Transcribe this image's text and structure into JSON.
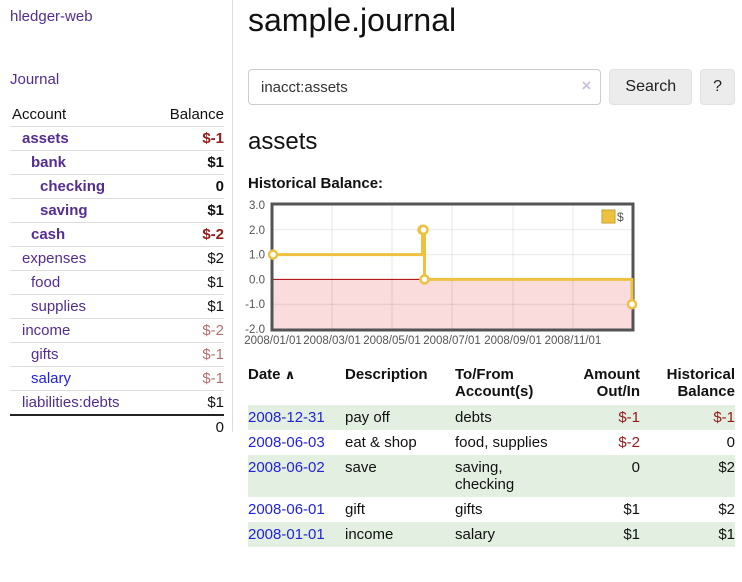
{
  "colors": {
    "link_visited": "#552d90",
    "link_unvisited": "#2222dd",
    "negative_strong": "#941a1a",
    "negative_muted": "#b4706f",
    "row_stripe_green": "#e3efe1",
    "chart_series_gold": "#edc240",
    "chart_series_gold_border": "#c9a02c",
    "chart_negative_fill": "#fadcdc",
    "chart_zero_line": "#aa0000",
    "chart_axis_text": "#545454",
    "chart_border": "#545454"
  },
  "icons": {
    "sort_ascending": "∧",
    "clear": "×"
  },
  "sidebar": {
    "brand": "hledger-web",
    "journal_link": "Journal",
    "accounts_table": {
      "headers": {
        "account": "Account",
        "balance": "Balance"
      },
      "rows": [
        {
          "name": "assets",
          "indent": 0,
          "bold": true,
          "balance": "$-1"
        },
        {
          "name": "bank",
          "indent": 1,
          "bold": true,
          "balance": "$1"
        },
        {
          "name": "checking",
          "indent": 2,
          "bold": true,
          "balance": "0"
        },
        {
          "name": "saving",
          "indent": 2,
          "bold": true,
          "balance": "$1"
        },
        {
          "name": "cash",
          "indent": 1,
          "bold": true,
          "balance": "$-2"
        },
        {
          "name": "expenses",
          "indent": 0,
          "bold": false,
          "balance": "$2"
        },
        {
          "name": "food",
          "indent": 1,
          "bold": false,
          "balance": "$1"
        },
        {
          "name": "supplies",
          "indent": 1,
          "bold": false,
          "balance": "$1"
        },
        {
          "name": "income",
          "indent": 0,
          "bold": false,
          "balance": "$-2"
        },
        {
          "name": "gifts",
          "indent": 1,
          "bold": false,
          "balance": "$-1"
        },
        {
          "name": "salary",
          "indent": 1,
          "bold": false,
          "balance": "$-1",
          "unvisited": true
        },
        {
          "name": "liabilities:debts",
          "indent": 0,
          "bold": false,
          "balance": "$1"
        }
      ],
      "total": "0"
    }
  },
  "header": {
    "title": "sample.journal"
  },
  "search": {
    "value": "inacct:assets",
    "button_label": "Search",
    "help_label": "?"
  },
  "account_page": {
    "heading": "assets",
    "chart_label": "Historical Balance:"
  },
  "chart_data": {
    "type": "line",
    "steps": true,
    "title": "Historical Balance:",
    "xlim": [
      "2008-01-01",
      "2008-12-31"
    ],
    "ylim": [
      -2,
      3
    ],
    "y_ticks": [
      "3.0",
      "2.0",
      "1.0",
      "0.0",
      "-1.0",
      "-2.0"
    ],
    "x_ticks": [
      {
        "date": "2008-01-01",
        "label": "2008/01/01"
      },
      {
        "date": "2008-03-01",
        "label": "2008/03/01"
      },
      {
        "date": "2008-05-01",
        "label": "2008/05/01"
      },
      {
        "date": "2008-07-01",
        "label": "2008/07/01"
      },
      {
        "date": "2008-09-01",
        "label": "2008/09/01"
      },
      {
        "date": "2008-11-01",
        "label": "2008/11/01"
      }
    ],
    "series": [
      {
        "name": "$",
        "points": [
          [
            "2008-01-01",
            1
          ],
          [
            "2008-06-01",
            2
          ],
          [
            "2008-06-02",
            2
          ],
          [
            "2008-06-03",
            0
          ],
          [
            "2008-12-31",
            -1
          ]
        ]
      }
    ],
    "legend_position": "top-right",
    "grid": true
  },
  "register": {
    "columns": [
      {
        "label": "Date"
      },
      {
        "label": "Description"
      },
      {
        "label": "To/From\nAccount(s)"
      },
      {
        "label": "Amount\nOut/In",
        "align": "right"
      },
      {
        "label": "Historical\nBalance",
        "align": "right"
      }
    ],
    "rows": [
      {
        "date": "2008-12-31",
        "description": "pay off",
        "accounts": "debts",
        "amount": "$-1",
        "balance": "$-1"
      },
      {
        "date": "2008-06-03",
        "description": "eat & shop",
        "accounts": "food, supplies",
        "amount": "$-2",
        "balance": "0"
      },
      {
        "date": "2008-06-02",
        "description": "save",
        "accounts": "saving, checking",
        "amount": "0",
        "balance": "$2"
      },
      {
        "date": "2008-06-01",
        "description": "gift",
        "accounts": "gifts",
        "amount": "$1",
        "balance": "$2"
      },
      {
        "date": "2008-01-01",
        "description": "income",
        "accounts": "salary",
        "amount": "$1",
        "balance": "$1"
      }
    ]
  }
}
